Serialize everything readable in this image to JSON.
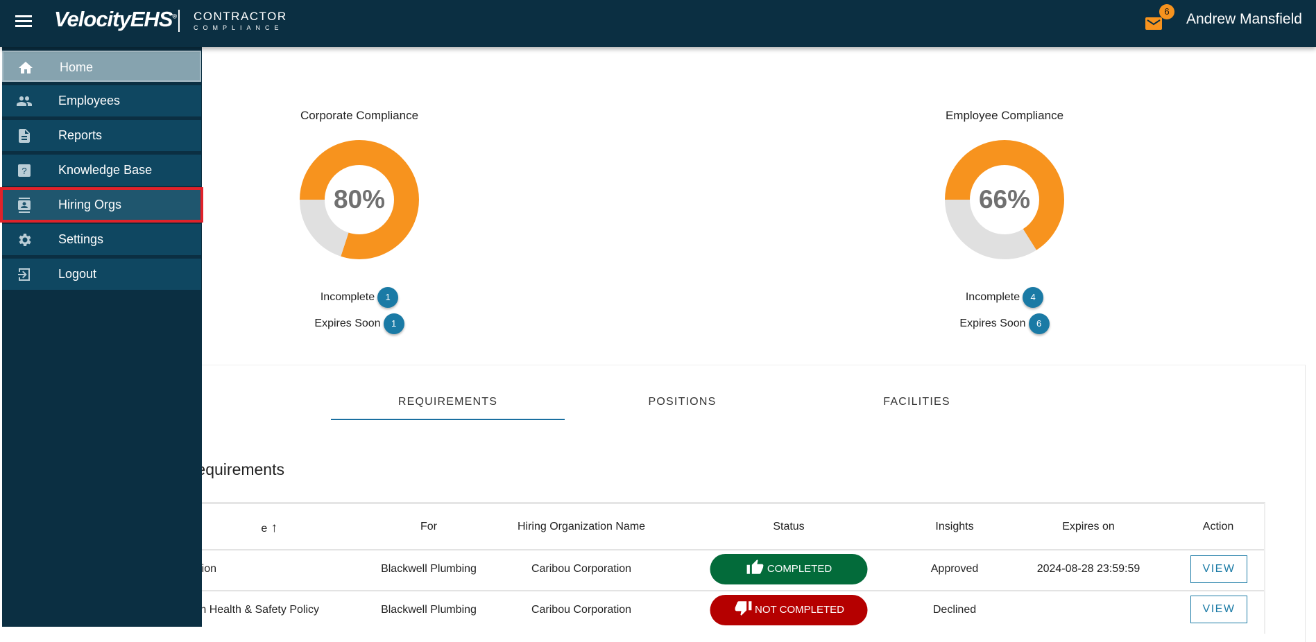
{
  "header": {
    "brand": "VelocityEHS",
    "product_line1": "CONTRACTOR",
    "product_line2": "COMPLIANCE",
    "mail_count": "6",
    "user_name": "Andrew Mansfield"
  },
  "sidebar": {
    "items": [
      {
        "label": "Home",
        "icon": "home-icon",
        "state": "active"
      },
      {
        "label": "Employees",
        "icon": "people-icon"
      },
      {
        "label": "Reports",
        "icon": "document-icon"
      },
      {
        "label": "Knowledge Base",
        "icon": "help-icon"
      },
      {
        "label": "Hiring Orgs",
        "icon": "contact-icon",
        "state": "highlighted"
      },
      {
        "label": "Settings",
        "icon": "gear-icon"
      },
      {
        "label": "Logout",
        "icon": "logout-icon"
      }
    ]
  },
  "colors": {
    "orange": "#f7931e",
    "gray": "#e0e0e0",
    "badge": "#1a7aa5",
    "completed": "#036b3a",
    "not_completed": "#b50000",
    "highlight": "#e0222a"
  },
  "chart_data": [
    {
      "type": "pie",
      "title": "Corporate Compliance",
      "value_label": "80%",
      "values": [
        80,
        20
      ],
      "stats": [
        {
          "label": "Incomplete",
          "count": "1"
        },
        {
          "label": "Expires Soon",
          "count": "1"
        }
      ]
    },
    {
      "type": "pie",
      "title": "Employee Compliance",
      "value_label": "66%",
      "values": [
        66,
        34
      ],
      "stats": [
        {
          "label": "Incomplete",
          "count": "4"
        },
        {
          "label": "Expires Soon",
          "count": "6"
        }
      ]
    }
  ],
  "tabs": [
    {
      "label": "REQUIREMENTS",
      "active": true
    },
    {
      "label": "POSITIONS"
    },
    {
      "label": "FACILITIES"
    }
  ],
  "section_title": "equirements",
  "table": {
    "headers": {
      "name": "e",
      "sort_icon": "arrow-up-icon",
      "for": "For",
      "org": "Hiring Organization Name",
      "status": "Status",
      "insights": "Insights",
      "expires": "Expires on",
      "action": "Action"
    },
    "rows": [
      {
        "name": "ion",
        "for": "Blackwell Plumbing",
        "org": "Caribou Corporation",
        "status": "COMPLETED",
        "insights": "Approved",
        "expires": "2024-08-28 23:59:59",
        "action": "VIEW"
      },
      {
        "name": "on Health & Safety Policy",
        "for": "Blackwell Plumbing",
        "org": "Caribou Corporation",
        "status": "NOT COMPLETED",
        "insights": "Declined",
        "expires": "",
        "action": "VIEW"
      }
    ]
  }
}
